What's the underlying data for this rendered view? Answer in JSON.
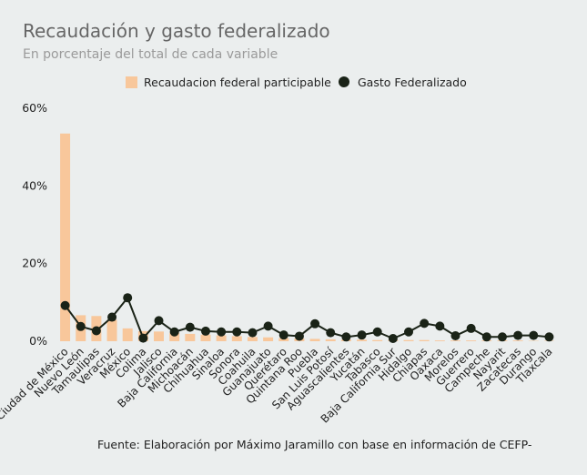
{
  "colors": {
    "background": "#ebeeee",
    "bar": "#f8c79b",
    "line": "#1a2317",
    "title": "#666666",
    "subtitle": "#9a9a9a"
  },
  "header": {
    "title": "Recaudación y gasto federalizado",
    "subtitle": "En porcentaje del total de cada variable"
  },
  "caption": "Fuente: Elaboración por Máximo Jaramillo con base en información de CEFP-",
  "chart_data": {
    "type": "bar",
    "title": "Recaudación y gasto federalizado",
    "subtitle": "En porcentaje del total de cada variable",
    "xlabel": "",
    "ylabel": "",
    "ylim": [
      0,
      60
    ],
    "yticks": [
      0,
      20,
      40,
      60
    ],
    "ytick_labels": [
      "0%",
      "20%",
      "40%",
      "60%"
    ],
    "grid": false,
    "legend_position": "top",
    "categories": [
      "Ciudad de México",
      "Nuevo León",
      "Tamaulipas",
      "Veracruz",
      "México",
      "Colima",
      "Jalisco",
      "Baja California",
      "Michoacán",
      "Chihuahua",
      "Sinaloa",
      "Sonora",
      "Coahuila",
      "Guanajuato",
      "Querétaro",
      "Quintana Roo",
      "Puebla",
      "San Luis Potosí",
      "Aguascalientes",
      "Yucatán",
      "Tabasco",
      "Baja California Sur",
      "Hidalgo",
      "Chiapas",
      "Oaxaca",
      "Morelos",
      "Guerrero",
      "Campeche",
      "Nayarit",
      "Zacatecas",
      "Durango",
      "Tlaxcala"
    ],
    "series": [
      {
        "name": "Recaudacion federal participable",
        "kind": "bar",
        "color": "#f8c79b",
        "values": [
          53.5,
          6.7,
          6.5,
          5.5,
          3.3,
          2.6,
          2.5,
          2.2,
          1.9,
          1.7,
          1.5,
          1.3,
          1.1,
          1.0,
          0.8,
          0.7,
          0.6,
          0.5,
          0.4,
          0.4,
          0.3,
          0.3,
          0.3,
          0.3,
          0.2,
          0.2,
          0.2,
          0.2,
          0.2,
          0.2,
          0.1,
          0.1
        ]
      },
      {
        "name": "Gasto Federalizado",
        "kind": "line",
        "color": "#1a2317",
        "values": [
          9.2,
          3.8,
          2.7,
          6.2,
          11.2,
          0.8,
          5.3,
          2.4,
          3.6,
          2.6,
          2.4,
          2.4,
          2.2,
          3.9,
          1.6,
          1.3,
          4.5,
          2.2,
          1.1,
          1.6,
          2.4,
          0.7,
          2.4,
          4.6,
          3.9,
          1.4,
          3.3,
          1.1,
          1.1,
          1.5,
          1.5,
          1.1
        ]
      }
    ]
  }
}
